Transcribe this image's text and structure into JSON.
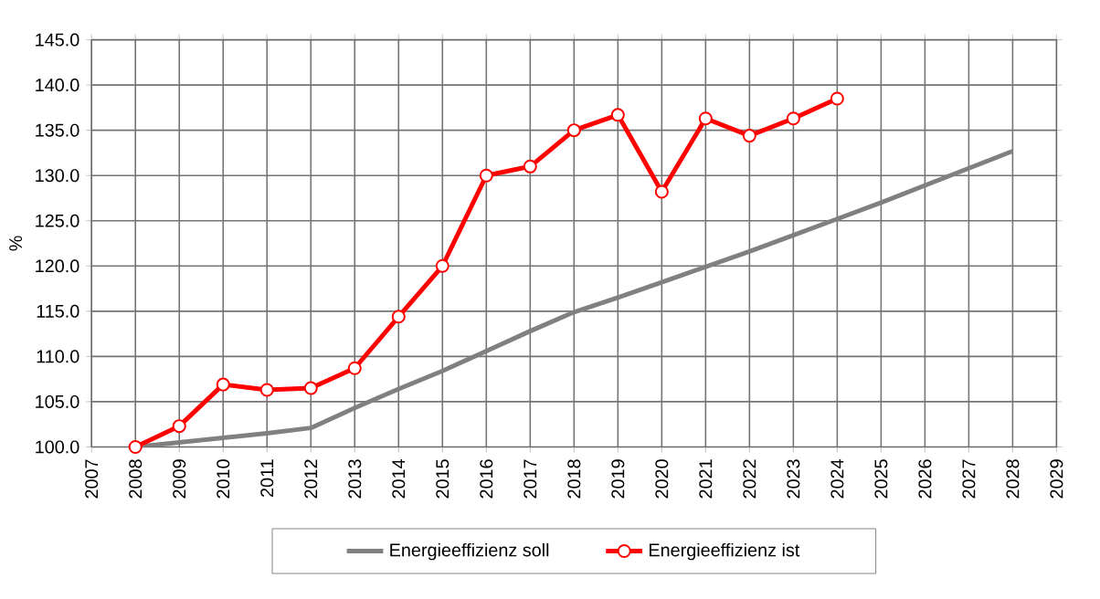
{
  "chart_data": {
    "type": "line",
    "ylabel": "%",
    "x": [
      2008,
      2009,
      2010,
      2011,
      2012,
      2013,
      2014,
      2015,
      2016,
      2017,
      2018,
      2019,
      2020,
      2021,
      2022,
      2023,
      2024,
      2025,
      2026,
      2027,
      2028
    ],
    "series": [
      {
        "name": "Energieeffizienz soll",
        "color": "#808080",
        "marker": "none",
        "values": [
          100,
          100.5,
          101,
          101.5,
          102.1,
          104.3,
          106.4,
          108.4,
          110.6,
          112.8,
          114.9,
          116.5,
          118.2,
          119.9,
          121.6,
          123.4,
          125.2,
          127.0,
          128.9,
          130.8,
          132.7
        ]
      },
      {
        "name": "Energieeffizienz ist",
        "color": "#ff0000",
        "marker": "circle",
        "values": [
          100,
          102.3,
          106.9,
          106.3,
          106.5,
          108.7,
          114.4,
          120.0,
          130.0,
          131.0,
          135.0,
          136.7,
          128.2,
          136.3,
          134.4,
          136.3,
          138.5,
          null,
          null,
          null,
          null
        ]
      }
    ],
    "xlim": [
      2007,
      2029
    ],
    "xticks": [
      2007,
      2008,
      2009,
      2010,
      2011,
      2012,
      2013,
      2014,
      2015,
      2016,
      2017,
      2018,
      2019,
      2020,
      2021,
      2022,
      2023,
      2024,
      2025,
      2026,
      2027,
      2028,
      2029
    ],
    "ylim": [
      100,
      145
    ],
    "yticks": [
      {
        "value": 100,
        "label": "100.0"
      },
      {
        "value": 105,
        "label": "105.0"
      },
      {
        "value": 110,
        "label": "110.0"
      },
      {
        "value": 115,
        "label": "115.0"
      },
      {
        "value": 120,
        "label": "120.0"
      },
      {
        "value": 125,
        "label": "125.0"
      },
      {
        "value": 130,
        "label": "130.0"
      },
      {
        "value": 135,
        "label": "135.0"
      },
      {
        "value": 140,
        "label": "140.0"
      },
      {
        "value": 145,
        "label": "145.0"
      }
    ],
    "grid": true,
    "legend": "bottom"
  }
}
